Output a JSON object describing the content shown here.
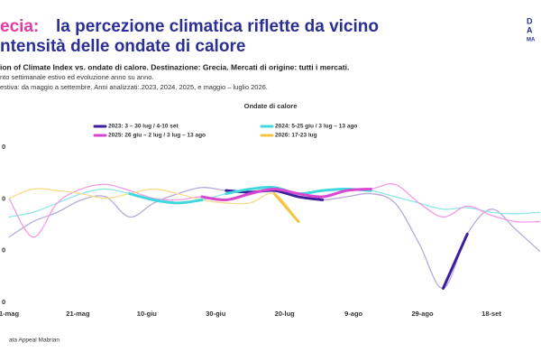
{
  "chart_data": {
    "type": "line",
    "title_accent": "ecia:",
    "title": "la percezione climatica riflette da vicino",
    "title_line2": "ntensità delle ondate di calore",
    "subtitle": "ion of Climate Index vs. ondate di calore. Destinazione: Grecia. Mercati di origine: tutti i mercati.",
    "notes": [
      "nto settimanale estivo ed evoluzione anno su anno.",
      "estiva: da maggio a settembre. Anni analizzati:.2023, 2024, 2025, e maggio – luglio 2026."
    ],
    "logo": [
      "D",
      "A",
      "MA"
    ],
    "legend_title": "Ondate di calore",
    "source": "ata Appeal Mabrian",
    "y_labels": [
      "0",
      "0",
      "0",
      "0"
    ],
    "x": [
      0,
      7,
      14,
      21,
      28,
      35,
      42,
      49,
      56,
      63,
      70,
      77,
      84,
      91,
      98,
      105,
      112,
      119,
      126,
      133,
      140,
      147,
      154
    ],
    "xlim": [
      0,
      154
    ],
    "xticks": [
      {
        "value": 0,
        "label": "1-mag"
      },
      {
        "value": 20,
        "label": "21-mag"
      },
      {
        "value": 40,
        "label": "10-giu"
      },
      {
        "value": 60,
        "label": "30-giu"
      },
      {
        "value": 80,
        "label": "20-lug"
      },
      {
        "value": 100,
        "label": "9-ago"
      },
      {
        "value": 120,
        "label": "29-ago"
      },
      {
        "value": 140,
        "label": "18-set"
      }
    ],
    "ylim": [
      0,
      100
    ],
    "series": [
      {
        "name": "2023: 3 – 30 lug / 4-10 set",
        "color": "#3b1f9e",
        "line_color": "#b9aad8",
        "values": [
          42,
          52,
          58,
          66,
          68,
          55,
          64,
          70,
          74,
          72,
          71,
          72,
          68,
          66,
          68,
          70,
          64,
          38,
          9,
          44,
          60,
          47,
          33
        ],
        "heatwaves": [
          [
            63,
            90
          ],
          [
            126,
            133
          ]
        ]
      },
      {
        "name": "2024: 5-25 giu / 3 lug – 13 ago",
        "color": "#3fd9dd",
        "line_color": "#8fe6e8",
        "values": [
          55,
          58,
          64,
          70,
          73,
          70,
          66,
          64,
          66,
          70,
          73,
          74,
          70,
          72,
          73,
          72,
          68,
          64,
          60,
          61,
          58,
          57,
          58
        ],
        "heatwaves": [
          [
            35,
            55
          ],
          [
            63,
            104
          ]
        ]
      },
      {
        "name": "2025: 26 giu – 2 lug / 3 lug – 13 ago",
        "color": "#d946cf",
        "line_color": "#f29be4",
        "values": [
          67,
          42,
          64,
          73,
          76,
          72,
          67,
          66,
          68,
          66,
          70,
          73,
          70,
          68,
          72,
          73,
          76,
          64,
          55,
          62,
          56,
          52,
          52
        ],
        "heatwaves": [
          [
            56,
            104
          ]
        ]
      },
      {
        "name": "2026: 17-23 lug",
        "color": "#f5c542",
        "line_color": "#f7dc8a",
        "values": [
          67,
          73,
          72,
          70,
          67,
          70,
          73,
          70,
          66,
          64,
          64,
          70,
          52,
          null,
          null,
          null,
          null,
          null,
          null,
          null,
          null,
          null,
          null
        ],
        "heatwaves": [
          [
            77,
            84
          ]
        ]
      }
    ]
  }
}
